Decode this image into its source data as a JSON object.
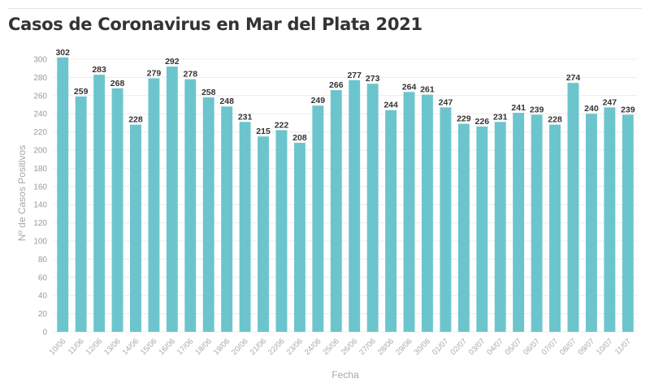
{
  "chart_data": {
    "type": "bar",
    "title": "Casos de Coronavirus en Mar del Plata 2021",
    "xlabel": "Fecha",
    "ylabel": "Nº de Casos Positivos",
    "ylim": [
      0,
      300
    ],
    "yticks": [
      0,
      20,
      40,
      60,
      80,
      100,
      120,
      140,
      160,
      180,
      200,
      220,
      240,
      260,
      280,
      300
    ],
    "grid": true,
    "bar_color": "#6cc5cd",
    "categories": [
      "10/06",
      "11/06",
      "12/06",
      "13/06",
      "14/06",
      "15/06",
      "16/06",
      "17/06",
      "18/06",
      "19/06",
      "20/06",
      "21/06",
      "22/06",
      "23/06",
      "24/06",
      "25/06",
      "26/06",
      "27/06",
      "28/06",
      "29/06",
      "30/06",
      "01/07",
      "02/07",
      "03/07",
      "04/07",
      "05/07",
      "06/07",
      "07/07",
      "08/07",
      "09/07",
      "10/07",
      "11/07"
    ],
    "values": [
      302,
      259,
      283,
      268,
      228,
      279,
      292,
      278,
      258,
      248,
      231,
      215,
      222,
      208,
      249,
      266,
      277,
      273,
      244,
      264,
      261,
      247,
      229,
      226,
      231,
      241,
      239,
      228,
      274,
      240,
      247,
      239
    ]
  }
}
